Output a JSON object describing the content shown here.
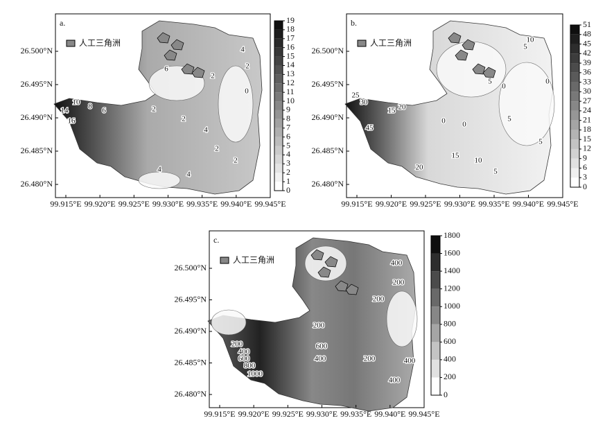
{
  "panels": [
    {
      "label": "a.",
      "legend": "人工三角洲",
      "xticks": [
        "99.915°E",
        "99.920°E",
        "99.925°E",
        "99.930°E",
        "99.935°E",
        "99.940°E",
        "99.945°E"
      ],
      "yticks": [
        "26.500°N",
        "26.495°N",
        "26.490°N",
        "26.485°N",
        "26.480°N"
      ],
      "colorbar": [
        0,
        1,
        2,
        3,
        4,
        5,
        6,
        7,
        8,
        9,
        10,
        11,
        12,
        13,
        14,
        15,
        16,
        17,
        18,
        19
      ],
      "contour_labels": [
        "4",
        "2",
        "6",
        "2",
        "0",
        "2",
        "4",
        "2",
        "2",
        "2",
        "4",
        "4",
        "6",
        "8",
        "10",
        "14",
        "16"
      ]
    },
    {
      "label": "b.",
      "legend": "人工三角洲",
      "xticks": [
        "99.915°E",
        "99.920°E",
        "99.925°E",
        "99.930°E",
        "99.935°E",
        "99.940°E",
        "99.945°E"
      ],
      "yticks": [
        "26.500°N",
        "26.495°N",
        "26.490°N",
        "26.485°N",
        "26.480°N"
      ],
      "colorbar": [
        0,
        3,
        6,
        9,
        12,
        15,
        18,
        21,
        24,
        27,
        30,
        33,
        36,
        39,
        42,
        45,
        48,
        51
      ],
      "contour_labels": [
        "10",
        "5",
        "5",
        "0",
        "0",
        "5",
        "0",
        "5",
        "5",
        "10",
        "15",
        "20",
        "0",
        "25",
        "30",
        "45",
        "20",
        "15"
      ]
    },
    {
      "label": "c.",
      "legend": "人工三角洲",
      "xticks": [
        "99.915°E",
        "99.920°E",
        "99.925°E",
        "99.930°E",
        "99.935°E",
        "99.940°E",
        "99.945°E"
      ],
      "yticks": [
        "26.500°N",
        "26.495°N",
        "26.490°N",
        "26.485°N",
        "26.480°N"
      ],
      "colorbar": [
        0,
        200,
        400,
        600,
        800,
        1000,
        1200,
        1400,
        1600,
        1800
      ],
      "contour_labels": [
        "400",
        "200",
        "200",
        "200",
        "400",
        "600",
        "400",
        "200",
        "400",
        "200",
        "400",
        "600",
        "800",
        "1000"
      ]
    }
  ]
}
